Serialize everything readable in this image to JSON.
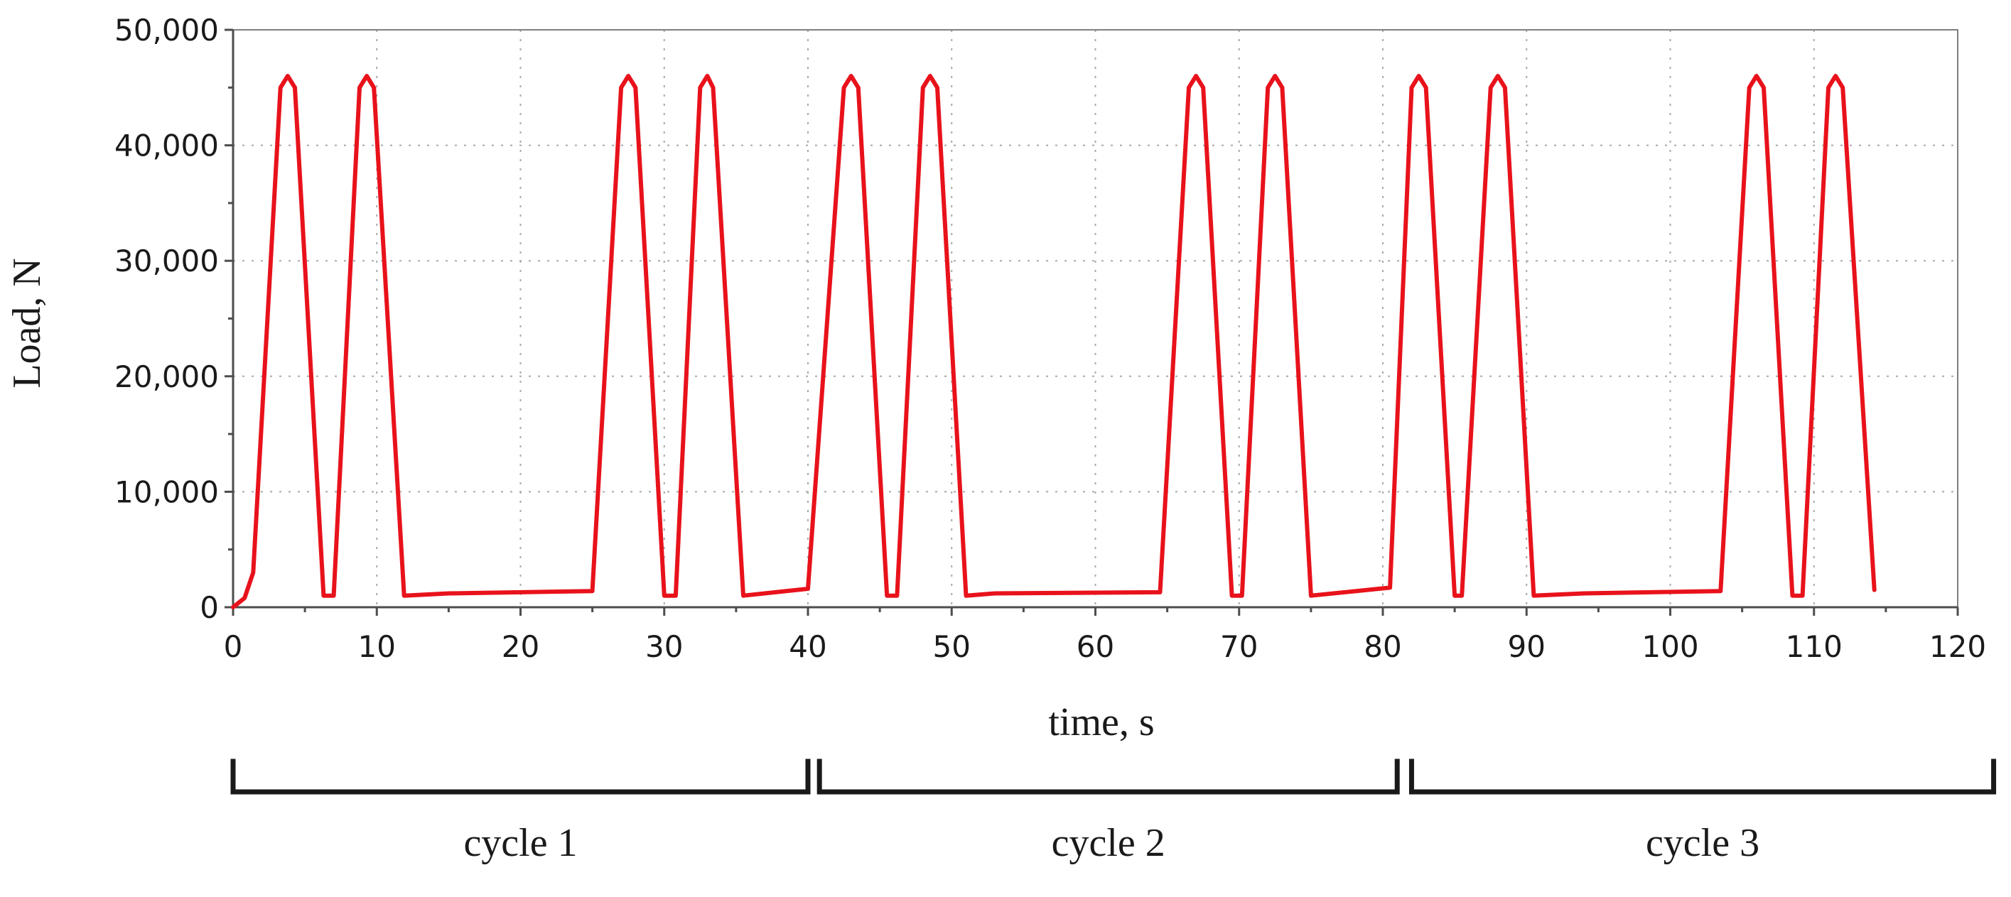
{
  "chart_data": {
    "type": "line",
    "title": "",
    "xlabel": "time, s",
    "ylabel": "Load, N",
    "xlim": [
      0,
      120
    ],
    "ylim": [
      0,
      50000
    ],
    "x_ticks": [
      0,
      10,
      20,
      30,
      40,
      50,
      60,
      70,
      80,
      90,
      100,
      110,
      120
    ],
    "x_tick_labels": [
      "0",
      "10",
      "20",
      "30",
      "40",
      "50",
      "60",
      "70",
      "80",
      "90",
      "100",
      "110",
      "120"
    ],
    "y_ticks": [
      0,
      10000,
      20000,
      30000,
      40000,
      50000
    ],
    "y_tick_labels": [
      "0",
      "10,000",
      "20,000",
      "30,000",
      "40,000",
      "50,000"
    ],
    "grid": true,
    "line_color": "#e8121b",
    "series": [
      {
        "name": "Load",
        "x": [
          0,
          0.8,
          1.4,
          3.3,
          3.8,
          4.3,
          6.3,
          7.0,
          8.8,
          9.3,
          9.8,
          11.9,
          15.0,
          25.0,
          27.0,
          27.5,
          28.0,
          30.0,
          30.8,
          32.5,
          33.0,
          33.4,
          35.5,
          40.0,
          42.5,
          43.0,
          43.5,
          45.5,
          46.2,
          48.0,
          48.5,
          49.0,
          51.0,
          53.0,
          64.5,
          66.5,
          67.0,
          67.5,
          69.5,
          70.2,
          72.0,
          72.5,
          73.0,
          75.0,
          80.5,
          82.0,
          82.5,
          83.0,
          85.0,
          85.5,
          87.5,
          88.0,
          88.5,
          90.5,
          94.0,
          103.5,
          105.5,
          106.0,
          106.5,
          108.5,
          109.2,
          111.0,
          111.5,
          112.0,
          114.2
        ],
        "y": [
          0,
          800,
          3000,
          45000,
          46000,
          45000,
          1000,
          1000,
          45000,
          46000,
          45000,
          1000,
          1200,
          1400,
          45000,
          46000,
          45000,
          1000,
          1000,
          45000,
          46000,
          45000,
          1000,
          1600,
          45000,
          46000,
          45000,
          1000,
          1000,
          45000,
          46000,
          45000,
          1000,
          1200,
          1300,
          45000,
          46000,
          45000,
          1000,
          1000,
          45000,
          46000,
          45000,
          1000,
          1700,
          45000,
          46000,
          45000,
          1000,
          1000,
          45000,
          46000,
          45000,
          1000,
          1200,
          1400,
          45000,
          46000,
          45000,
          1000,
          1000,
          45000,
          46000,
          45000,
          1500
        ]
      }
    ],
    "cycles": [
      {
        "label": "cycle 1",
        "from": 0,
        "to": 40
      },
      {
        "label": "cycle 2",
        "from": 40.8,
        "to": 81
      },
      {
        "label": "cycle 3",
        "from": 82,
        "to": 122.5
      }
    ]
  }
}
